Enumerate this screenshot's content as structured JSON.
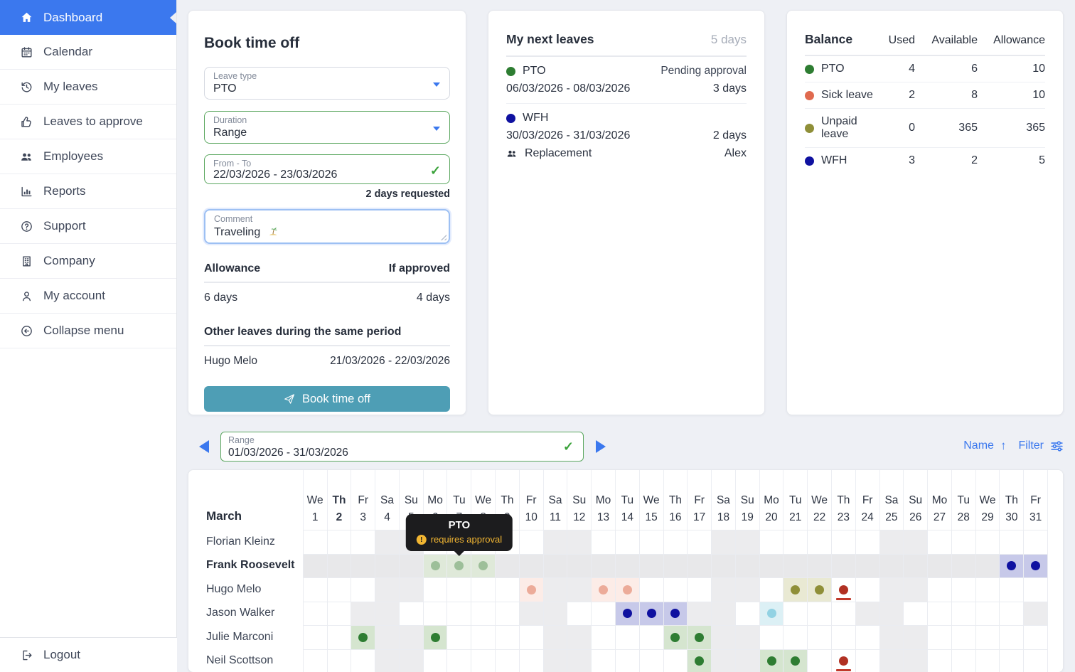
{
  "colors": {
    "accent_blue": "#3b78ee",
    "button_teal": "#4e9eb5",
    "valid_green": "#5ba75f"
  },
  "sidebar": {
    "items": [
      {
        "label": "Dashboard",
        "icon": "home-icon",
        "active": true
      },
      {
        "label": "Calendar",
        "icon": "calendar-icon"
      },
      {
        "label": "My leaves",
        "icon": "history-icon"
      },
      {
        "label": "Leaves to approve",
        "icon": "thumbs-up-icon"
      },
      {
        "label": "Employees",
        "icon": "users-icon"
      },
      {
        "label": "Reports",
        "icon": "bar-chart-icon"
      },
      {
        "label": "Support",
        "icon": "help-icon"
      },
      {
        "label": "Company",
        "icon": "building-icon"
      },
      {
        "label": "My account",
        "icon": "user-icon"
      },
      {
        "label": "Collapse menu",
        "icon": "collapse-icon"
      }
    ],
    "logout_label": "Logout"
  },
  "book": {
    "title": "Book time off",
    "leave_type": {
      "label": "Leave type",
      "value": "PTO"
    },
    "duration": {
      "label": "Duration",
      "value": "Range"
    },
    "from_to": {
      "label": "From - To",
      "value": "22/03/2026 - 23/03/2026"
    },
    "days_requested": "2 days requested",
    "comment": {
      "label": "Comment",
      "value": "Traveling",
      "emoji": "🏝"
    },
    "allowance": {
      "header": "Allowance",
      "if_approved_header": "If approved",
      "current": "6 days",
      "if_approved": "4 days"
    },
    "other_leaves": {
      "heading": "Other leaves during the same period",
      "rows": [
        {
          "name": "Hugo Melo",
          "range": "21/03/2026 - 22/03/2026"
        }
      ]
    },
    "submit_label": "Book time off"
  },
  "next_leaves": {
    "title": "My next leaves",
    "total": "5 days",
    "entries": [
      {
        "type": "PTO",
        "color": "#2e7d32",
        "status": "Pending approval",
        "range": "06/03/2026 - 08/03/2026",
        "days": "3 days"
      },
      {
        "type": "WFH",
        "color": "#0f11a0",
        "range": "30/03/2026 - 31/03/2026",
        "days": "2 days",
        "replacement_label": "Replacement",
        "replacement": "Alex"
      }
    ]
  },
  "balance": {
    "title": "Balance",
    "headers": [
      "Used",
      "Available",
      "Allowance"
    ],
    "rows": [
      {
        "name": "PTO",
        "color": "#2e7d32",
        "used": "4",
        "available": "6",
        "allowance": "10"
      },
      {
        "name": "Sick leave",
        "color": "#e06a4f",
        "used": "2",
        "available": "8",
        "allowance": "10"
      },
      {
        "name": "Unpaid leave",
        "color": "#8f8f38",
        "used": "0",
        "available": "365",
        "allowance": "365"
      },
      {
        "name": "WFH",
        "color": "#0f11a0",
        "used": "3",
        "available": "2",
        "allowance": "5"
      }
    ]
  },
  "range_bar": {
    "label": "Range",
    "value": "01/03/2026 - 31/03/2026",
    "sort_label": "Name",
    "filter_label": "Filter"
  },
  "calendar": {
    "month": "March",
    "today": 2,
    "weekend_days": [
      4,
      5,
      11,
      12,
      18,
      19,
      25,
      26
    ],
    "days": [
      {
        "n": 1,
        "w": "We"
      },
      {
        "n": 2,
        "w": "Th"
      },
      {
        "n": 3,
        "w": "Fr"
      },
      {
        "n": 4,
        "w": "Sa"
      },
      {
        "n": 5,
        "w": "Su"
      },
      {
        "n": 6,
        "w": "Mo"
      },
      {
        "n": 7,
        "w": "Tu"
      },
      {
        "n": 8,
        "w": "We"
      },
      {
        "n": 9,
        "w": "Th"
      },
      {
        "n": 10,
        "w": "Fr"
      },
      {
        "n": 11,
        "w": "Sa"
      },
      {
        "n": 12,
        "w": "Su"
      },
      {
        "n": 13,
        "w": "Mo"
      },
      {
        "n": 14,
        "w": "Tu"
      },
      {
        "n": 15,
        "w": "We"
      },
      {
        "n": 16,
        "w": "Th"
      },
      {
        "n": 17,
        "w": "Fr"
      },
      {
        "n": 18,
        "w": "Sa"
      },
      {
        "n": 19,
        "w": "Su"
      },
      {
        "n": 20,
        "w": "Mo"
      },
      {
        "n": 21,
        "w": "Tu"
      },
      {
        "n": 22,
        "w": "We"
      },
      {
        "n": 23,
        "w": "Th"
      },
      {
        "n": 24,
        "w": "Fr"
      },
      {
        "n": 25,
        "w": "Sa"
      },
      {
        "n": 26,
        "w": "Su"
      },
      {
        "n": 27,
        "w": "Mo"
      },
      {
        "n": 28,
        "w": "Tu"
      },
      {
        "n": 29,
        "w": "We"
      },
      {
        "n": 30,
        "w": "Th"
      },
      {
        "n": 31,
        "w": "Fr"
      }
    ],
    "leave_styles": {
      "pto": {
        "dot": "#2e7d32",
        "bg": "#d5e5cf"
      },
      "pto_pending": {
        "dot": "#9dbf99",
        "bg": "#dfe9d9"
      },
      "wfh": {
        "dot": "#0f11a0",
        "bg": "#c7c9e9"
      },
      "sick_pending": {
        "dot": "#ecab99",
        "bg": "#fcece7"
      },
      "unpaid": {
        "dot": "#8f8f38",
        "bg": "#e9e9d3"
      },
      "other": {
        "dot": "#92d2e3",
        "bg": "#dcf0f5"
      },
      "sick_cert": {
        "dot": "#b13123",
        "bg": "",
        "underline": "#c0392b"
      }
    },
    "rows": [
      {
        "name": "Florian Kleinz",
        "leaves": {}
      },
      {
        "name": "Frank Roosevelt",
        "bold": true,
        "hover": true,
        "leaves": {
          "6": "pto_pending",
          "7": "pto_pending",
          "8": "pto_pending",
          "30": "wfh",
          "31": "wfh"
        }
      },
      {
        "name": "Hugo Melo",
        "leaves": {
          "10": "sick_pending",
          "13": "sick_pending",
          "14": "sick_pending",
          "21": "unpaid",
          "22": "unpaid",
          "23": "sick_cert"
        }
      },
      {
        "name": "Jason Walker",
        "off_days": [
          3,
          4,
          10,
          11,
          17,
          18,
          24,
          25,
          31
        ],
        "leaves": {
          "14": "wfh",
          "15": "wfh",
          "16": "wfh",
          "20": "other"
        }
      },
      {
        "name": "Julie Marconi",
        "leaves": {
          "3": "pto",
          "6": "pto",
          "16": "pto",
          "17": "pto"
        }
      },
      {
        "name": "Neil Scottson",
        "leaves": {
          "17": "pto",
          "20": "pto",
          "21": "pto",
          "23": "sick_cert"
        }
      }
    ],
    "tooltip": {
      "title": "PTO",
      "message": "requires approval",
      "day": 7
    }
  }
}
